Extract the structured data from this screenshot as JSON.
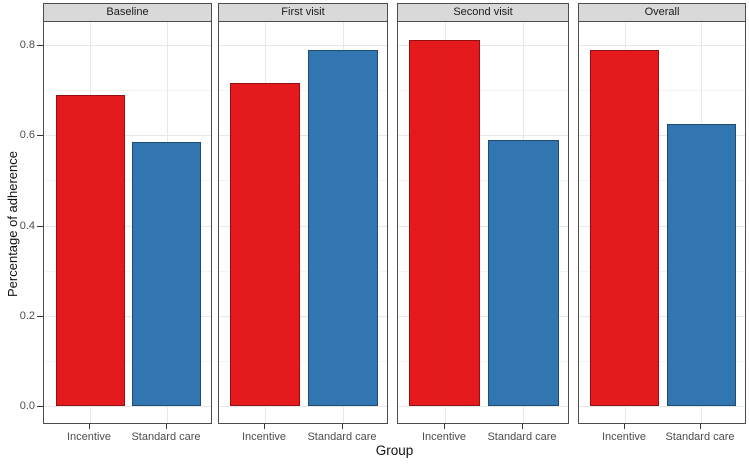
{
  "chart_data": {
    "type": "bar",
    "title": "",
    "facets": [
      "Baseline",
      "First visit",
      "Second visit",
      "Overall"
    ],
    "categories": [
      "Incentive",
      "Standard care"
    ],
    "series": [
      {
        "name": "Incentive",
        "color": "#E41A1C",
        "values": [
          0.69,
          0.715,
          0.81,
          0.79
        ]
      },
      {
        "name": "Standard care",
        "color": "#3276B1",
        "values": [
          0.585,
          0.79,
          0.59,
          0.625
        ]
      }
    ],
    "xlabel": "Group",
    "ylabel": "Percentage of adherence",
    "ylim": [
      0,
      0.84
    ],
    "yticks": [
      0,
      0.2,
      0.4,
      0.6,
      0.8
    ],
    "ytick_labels": [
      "0.0",
      "0.2",
      "0.4",
      "0.6",
      "0.8"
    ],
    "minor_yticks": [
      0.1,
      0.3,
      0.5,
      0.7
    ],
    "grid": "major horizontal and vertical at category centers, minor horizontal",
    "legend": "none"
  },
  "colors": {
    "incentive_bar": "#E41A1C",
    "standard_care_bar": "#3276B1",
    "strip_background": "#D9D9D9",
    "panel_border": "#4D4D4D",
    "grid_major": "#E8E8E8",
    "grid_minor": "#F4F4F4",
    "tick_text": "#4D4D4D"
  }
}
